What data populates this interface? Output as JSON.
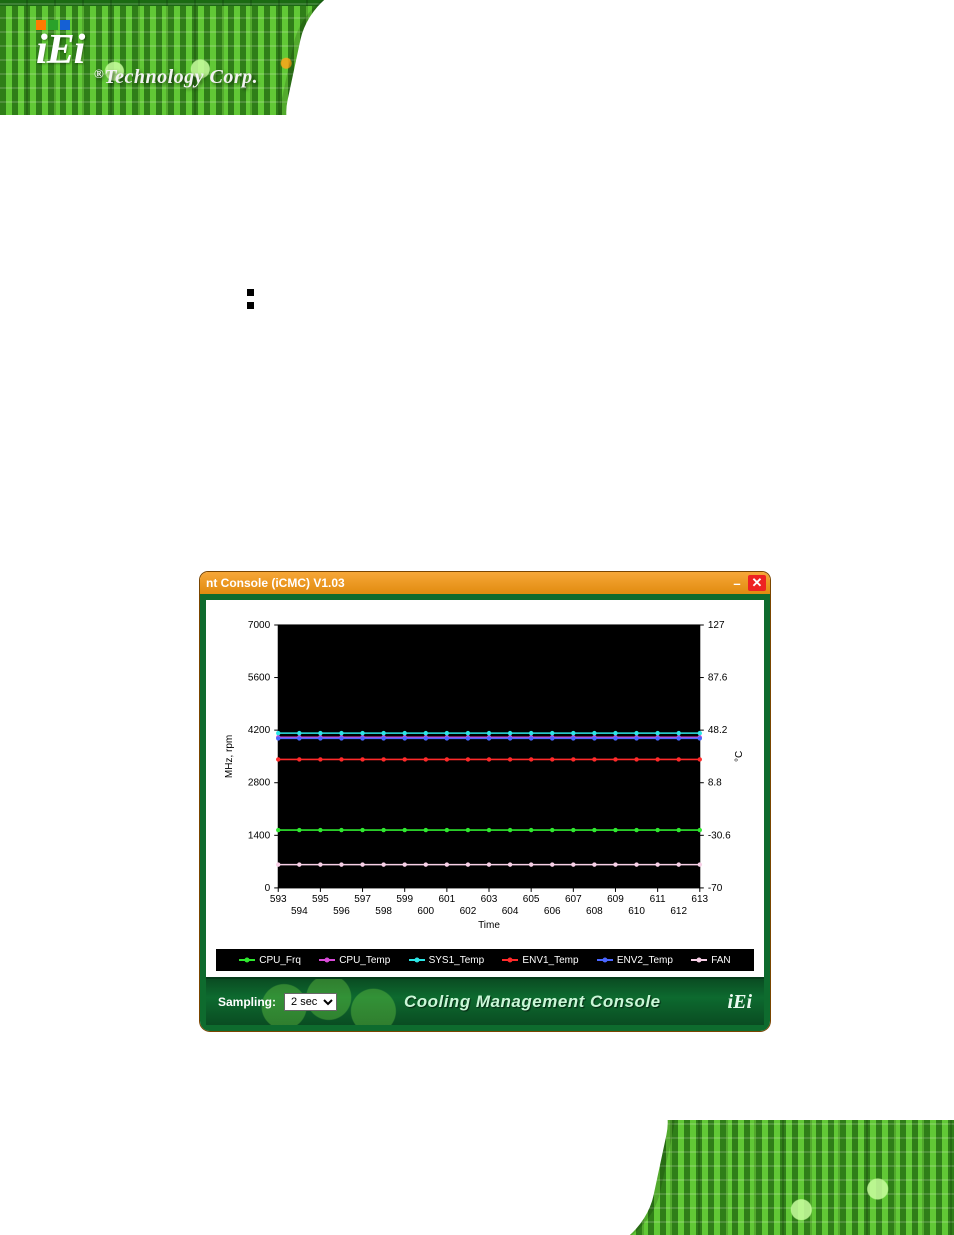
{
  "logo": {
    "text": "iEi",
    "tagline": "Technology Corp.",
    "reg": "®",
    "squares": [
      "#ff7a00",
      "#2aa22a",
      "#1560d4"
    ]
  },
  "bullets": [
    "",
    "",
    "",
    "",
    "",
    ""
  ],
  "window": {
    "title": "nt Console (iCMC) V1.03",
    "minimize": "–",
    "close": "✕",
    "sampling_label": "Sampling:",
    "sampling_value": "2 sec",
    "bottom_title": "Cooling Management Console",
    "mini_logo": "iEi"
  },
  "chart": {
    "type": "line",
    "plot_bg": "#000000",
    "page_bg": "#ffffff",
    "left_axis": {
      "label": "MHz, rpm",
      "min": 0,
      "max": 7000,
      "ticks": [
        0,
        1400,
        2800,
        4200,
        5600,
        7000
      ]
    },
    "right_axis": {
      "label": "°C",
      "min": -70,
      "max": 127,
      "ticks": [
        -70,
        -30.6,
        8.8,
        48.2,
        87.6,
        127
      ]
    },
    "x_axis": {
      "label": "Time",
      "ticks_top": [
        593,
        595,
        597,
        599,
        601,
        603,
        605,
        607,
        609,
        611,
        613
      ],
      "ticks_bot": [
        594,
        596,
        598,
        600,
        602,
        604,
        606,
        608,
        610,
        612
      ]
    },
    "series": [
      {
        "key": "CPU_Frq",
        "name": "CPU_Frq",
        "color": "#2fe82f",
        "y_left": 1540,
        "marker": "circle"
      },
      {
        "key": "CPU_Temp",
        "name": "CPU_Temp",
        "color": "#d84bd8",
        "y_left": 4010,
        "marker": "circle"
      },
      {
        "key": "SYS1_Temp",
        "name": "SYS1_Temp",
        "color": "#2ce6e6",
        "y_left": 4120,
        "marker": "circle"
      },
      {
        "key": "ENV1_Temp",
        "name": "ENV1_Temp",
        "color": "#ff2a2a",
        "y_left": 3420,
        "marker": "circle"
      },
      {
        "key": "ENV2_Temp",
        "name": "ENV2_Temp",
        "color": "#4a66ff",
        "y_left": 3980,
        "marker": "circle"
      },
      {
        "key": "FAN",
        "name": "FAN",
        "color": "#f7cfe6",
        "y_left": 620,
        "marker": "circle"
      }
    ],
    "line_width": 1.5,
    "marker_r": 2.2
  }
}
